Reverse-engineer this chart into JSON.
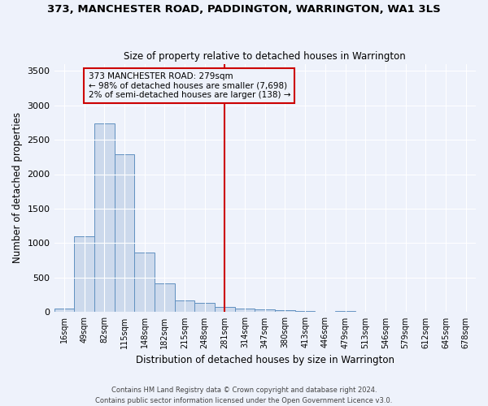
{
  "title": "373, MANCHESTER ROAD, PADDINGTON, WARRINGTON, WA1 3LS",
  "subtitle": "Size of property relative to detached houses in Warrington",
  "xlabel": "Distribution of detached houses by size in Warrington",
  "ylabel": "Number of detached properties",
  "bar_color": "#ccd9ec",
  "bar_edge_color": "#6090c0",
  "background_color": "#eef2fb",
  "grid_color": "#ffffff",
  "categories": [
    "16sqm",
    "49sqm",
    "82sqm",
    "115sqm",
    "148sqm",
    "182sqm",
    "215sqm",
    "248sqm",
    "281sqm",
    "314sqm",
    "347sqm",
    "380sqm",
    "413sqm",
    "446sqm",
    "479sqm",
    "513sqm",
    "546sqm",
    "579sqm",
    "612sqm",
    "645sqm",
    "678sqm"
  ],
  "values": [
    55,
    1100,
    2730,
    2290,
    870,
    420,
    165,
    130,
    70,
    50,
    40,
    25,
    20,
    0,
    20,
    0,
    0,
    0,
    0,
    0,
    0
  ],
  "ylim": [
    0,
    3600
  ],
  "yticks": [
    0,
    500,
    1000,
    1500,
    2000,
    2500,
    3000,
    3500
  ],
  "vline_index": 8,
  "vline_color": "#cc0000",
  "annotation_title": "373 MANCHESTER ROAD: 279sqm",
  "annotation_line1": "← 98% of detached houses are smaller (7,698)",
  "annotation_line2": "2% of semi-detached houses are larger (138) →",
  "annotation_box_color": "#cc0000",
  "footer_line1": "Contains HM Land Registry data © Crown copyright and database right 2024.",
  "footer_line2": "Contains public sector information licensed under the Open Government Licence v3.0."
}
